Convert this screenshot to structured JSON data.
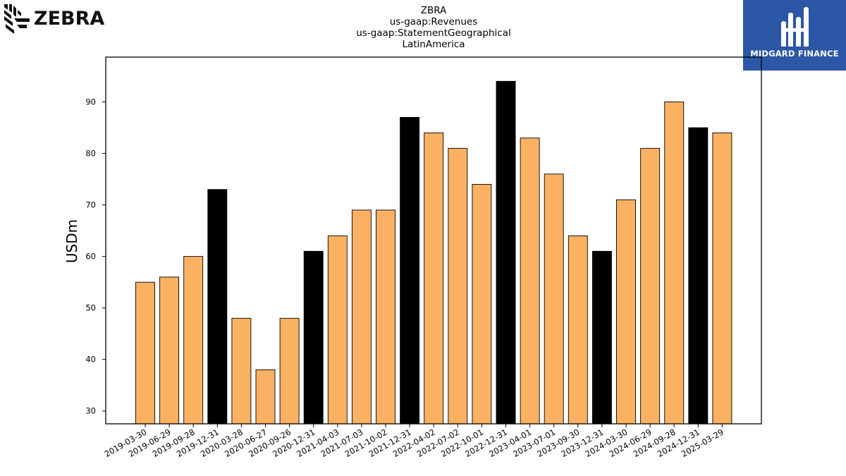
{
  "header": {
    "title_lines": [
      "ZBRA",
      "us-gaap:Revenues",
      "us-gaap:StatementGeographical",
      "LatinAmerica"
    ]
  },
  "logos": {
    "left_brand": "ZEBRA",
    "right_brand": "MIDGARD FINANCE"
  },
  "colors": {
    "bar_default": "#fbb162",
    "bar_highlight": "#000000",
    "logo_right_bg": "#2c56a6"
  },
  "chart_data": {
    "type": "bar",
    "title": "ZBRA\nus-gaap:Revenues\nus-gaap:StatementGeographical\nLatinAmerica",
    "xlabel": "",
    "ylabel": "USDm",
    "ylim": [
      27.5,
      98.7
    ],
    "yticks": [
      30,
      40,
      50,
      60,
      70,
      80,
      90
    ],
    "grid": false,
    "categories": [
      "2019-03-30",
      "2019-06-29",
      "2019-09-28",
      "2019-12-31",
      "2020-03-28",
      "2020-06-27",
      "2020-09-26",
      "2020-12-31",
      "2021-04-03",
      "2021-07-03",
      "2021-10-02",
      "2021-12-31",
      "2022-04-02",
      "2022-07-02",
      "2022-10-01",
      "2022-12-31",
      "2023-04-01",
      "2023-07-01",
      "2023-09-30",
      "2023-12-31",
      "2024-03-30",
      "2024-06-29",
      "2024-09-28",
      "2024-12-31",
      "2025-03-29"
    ],
    "values": [
      55,
      56,
      60,
      73,
      48,
      38,
      48,
      61,
      64,
      69,
      69,
      87,
      84,
      81,
      74,
      94,
      83,
      76,
      64,
      61,
      71,
      81,
      90,
      85,
      84
    ],
    "highlight": [
      false,
      false,
      false,
      true,
      false,
      false,
      false,
      true,
      false,
      false,
      false,
      true,
      false,
      false,
      false,
      true,
      false,
      false,
      false,
      true,
      false,
      false,
      false,
      true,
      false
    ]
  }
}
